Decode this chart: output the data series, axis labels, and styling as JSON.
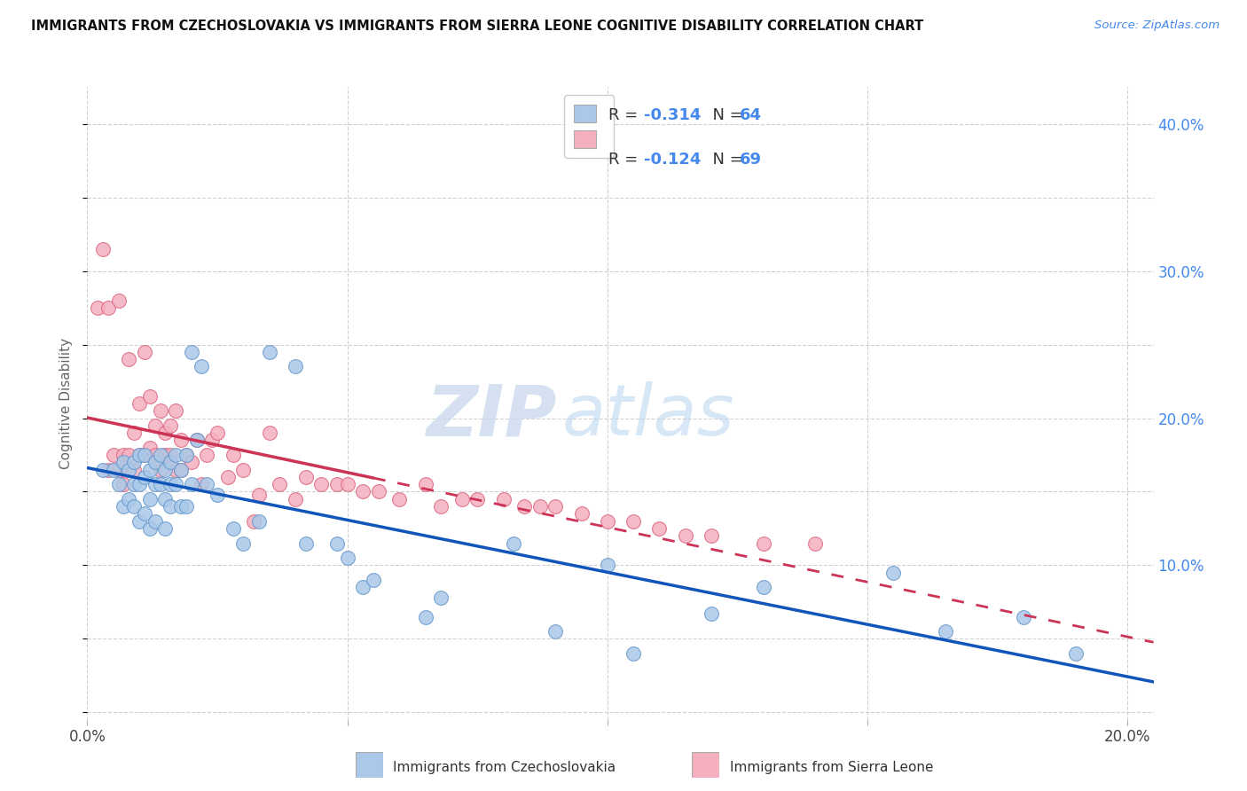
{
  "title": "IMMIGRANTS FROM CZECHOSLOVAKIA VS IMMIGRANTS FROM SIERRA LEONE COGNITIVE DISABILITY CORRELATION CHART",
  "source": "Source: ZipAtlas.com",
  "ylabel": "Cognitive Disability",
  "xlim": [
    0.0,
    0.205
  ],
  "ylim": [
    -0.005,
    0.425
  ],
  "yticks": [
    0.1,
    0.2,
    0.3,
    0.4
  ],
  "ytick_labels": [
    "10.0%",
    "20.0%",
    "30.0%",
    "40.0%"
  ],
  "xticks": [
    0.0,
    0.05,
    0.1,
    0.15,
    0.2
  ],
  "xtick_labels": [
    "0.0%",
    "",
    "",
    "",
    "20.0%"
  ],
  "blue_R": -0.314,
  "blue_N": 64,
  "pink_R": -0.124,
  "pink_N": 69,
  "blue_color": "#aac8e8",
  "pink_color": "#f5b0c0",
  "blue_edge_color": "#6699cc",
  "pink_edge_color": "#dd6680",
  "blue_line_color": "#1155bb",
  "pink_line_color": "#cc3355",
  "watermark_zip": "ZIP",
  "watermark_atlas": "atlas",
  "legend_label_blue": "Immigrants from Czechoslovakia",
  "legend_label_pink": "Immigrants from Sierra Leone",
  "blue_x": [
    0.003,
    0.005,
    0.006,
    0.007,
    0.007,
    0.008,
    0.008,
    0.009,
    0.009,
    0.009,
    0.01,
    0.01,
    0.01,
    0.011,
    0.011,
    0.011,
    0.012,
    0.012,
    0.012,
    0.013,
    0.013,
    0.013,
    0.014,
    0.014,
    0.015,
    0.015,
    0.015,
    0.016,
    0.016,
    0.016,
    0.017,
    0.017,
    0.018,
    0.018,
    0.019,
    0.019,
    0.02,
    0.02,
    0.021,
    0.022,
    0.023,
    0.025,
    0.028,
    0.03,
    0.033,
    0.035,
    0.04,
    0.042,
    0.048,
    0.05,
    0.053,
    0.055,
    0.065,
    0.068,
    0.082,
    0.09,
    0.1,
    0.105,
    0.12,
    0.13,
    0.155,
    0.165,
    0.18,
    0.19
  ],
  "blue_y": [
    0.165,
    0.165,
    0.155,
    0.17,
    0.14,
    0.165,
    0.145,
    0.17,
    0.155,
    0.14,
    0.175,
    0.155,
    0.13,
    0.175,
    0.16,
    0.135,
    0.165,
    0.145,
    0.125,
    0.17,
    0.155,
    0.13,
    0.175,
    0.155,
    0.165,
    0.145,
    0.125,
    0.17,
    0.155,
    0.14,
    0.175,
    0.155,
    0.165,
    0.14,
    0.175,
    0.14,
    0.155,
    0.245,
    0.185,
    0.235,
    0.155,
    0.148,
    0.125,
    0.115,
    0.13,
    0.245,
    0.235,
    0.115,
    0.115,
    0.105,
    0.085,
    0.09,
    0.065,
    0.078,
    0.115,
    0.055,
    0.1,
    0.04,
    0.067,
    0.085,
    0.095,
    0.055,
    0.065,
    0.04
  ],
  "pink_x": [
    0.002,
    0.003,
    0.004,
    0.004,
    0.005,
    0.006,
    0.006,
    0.007,
    0.007,
    0.008,
    0.008,
    0.009,
    0.009,
    0.01,
    0.01,
    0.011,
    0.011,
    0.012,
    0.012,
    0.013,
    0.013,
    0.014,
    0.014,
    0.015,
    0.015,
    0.016,
    0.016,
    0.017,
    0.017,
    0.018,
    0.018,
    0.019,
    0.02,
    0.021,
    0.022,
    0.023,
    0.024,
    0.025,
    0.027,
    0.028,
    0.03,
    0.032,
    0.033,
    0.035,
    0.037,
    0.04,
    0.042,
    0.045,
    0.048,
    0.05,
    0.053,
    0.056,
    0.06,
    0.065,
    0.068,
    0.072,
    0.075,
    0.08,
    0.084,
    0.087,
    0.09,
    0.095,
    0.1,
    0.105,
    0.11,
    0.115,
    0.12,
    0.13,
    0.14
  ],
  "pink_y": [
    0.275,
    0.315,
    0.165,
    0.275,
    0.175,
    0.28,
    0.165,
    0.175,
    0.155,
    0.24,
    0.175,
    0.19,
    0.165,
    0.21,
    0.175,
    0.245,
    0.175,
    0.215,
    0.18,
    0.195,
    0.175,
    0.205,
    0.165,
    0.19,
    0.175,
    0.195,
    0.175,
    0.205,
    0.165,
    0.185,
    0.165,
    0.175,
    0.17,
    0.185,
    0.155,
    0.175,
    0.185,
    0.19,
    0.16,
    0.175,
    0.165,
    0.13,
    0.148,
    0.19,
    0.155,
    0.145,
    0.16,
    0.155,
    0.155,
    0.155,
    0.15,
    0.15,
    0.145,
    0.155,
    0.14,
    0.145,
    0.145,
    0.145,
    0.14,
    0.14,
    0.14,
    0.135,
    0.13,
    0.13,
    0.125,
    0.12,
    0.12,
    0.115,
    0.115
  ]
}
